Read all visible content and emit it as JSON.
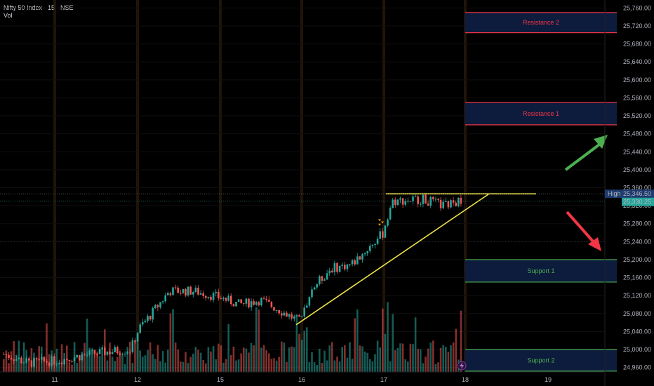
{
  "header": {
    "title": "Nifty 50 Index · 15 · NSE",
    "indicator": "Vol"
  },
  "colors": {
    "up": "#26a69a",
    "down": "#ef5350",
    "trend": "#f0e44a",
    "resistance": "#f23645",
    "support": "#4caf50",
    "zone_fill": "#0d1b3d",
    "arrow_up": "#4caf50",
    "arrow_down": "#f23645"
  },
  "chart_data": {
    "type": "candlestick",
    "y_axis": {
      "ticks": [
        "25,760.00",
        "25,720.00",
        "25,680.00",
        "25,640.00",
        "25,600.00",
        "25,560.00",
        "25,520.00",
        "25,480.00",
        "25,440.00",
        "25,400.00",
        "25,360.00",
        "25,320.00",
        "25,280.00",
        "25,240.00",
        "25,200.00",
        "25,160.00",
        "25,120.00",
        "25,080.00",
        "25,040.00",
        "25,000.00",
        "24,960.00"
      ],
      "min": 24950,
      "max": 25770
    },
    "x_axis": {
      "ticks": [
        "11",
        "12",
        "15",
        "16",
        "17",
        "18",
        "19"
      ]
    },
    "price_labels": {
      "high_tag": "High",
      "high_value": "25,346.50",
      "last_value": "25,330.25"
    },
    "zones": [
      {
        "label": "Resistance 2",
        "from": 25705,
        "to": 25750,
        "kind": "resistance"
      },
      {
        "label": "Resistance 1",
        "from": 25500,
        "to": 25550,
        "kind": "resistance"
      },
      {
        "label": "Support 1",
        "from": 25150,
        "to": 25200,
        "kind": "support"
      },
      {
        "label": "Support 2",
        "from": 24952,
        "to": 25000,
        "kind": "support"
      }
    ],
    "trendline": {
      "from_price": 25055,
      "to_price": 25346.5
    },
    "horizontal_line": {
      "price": 25346.5
    },
    "session_closes": [
      24990,
      25130,
      25110,
      25060,
      25330,
      25330
    ],
    "session_highs": [
      25010,
      25140,
      25140,
      25070,
      25346,
      25346
    ]
  }
}
